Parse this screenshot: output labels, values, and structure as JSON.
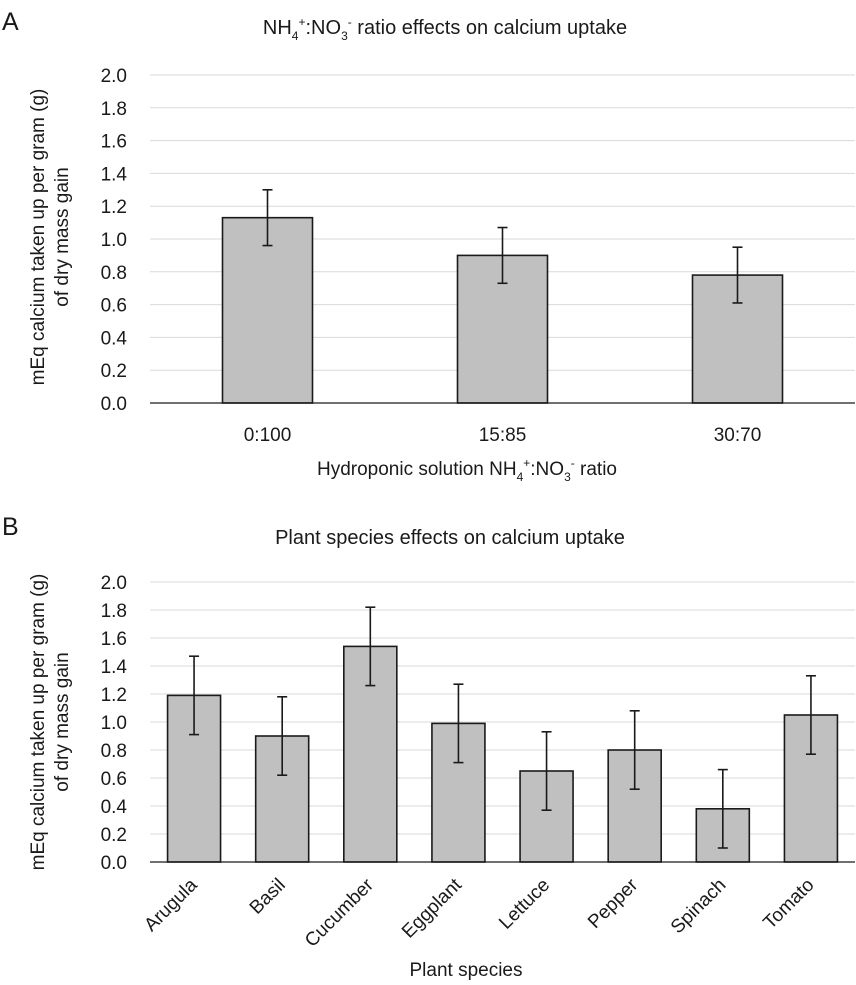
{
  "chart_data": [
    {
      "panel": "A",
      "type": "bar",
      "title": {
        "prefix": "NH",
        "sub1": "4",
        "sup1": "+",
        "mid": ":NO",
        "sub2": "3",
        "sup2": "-",
        "suffix": " ratio effects on calcium uptake"
      },
      "ylabel": {
        "line1": "mEq calcium taken up per gram (g)",
        "line2": "of dry mass gain"
      },
      "xlabel": {
        "prefix": "Hydroponic solution NH",
        "sub1": "4",
        "sup1": "+",
        "mid": ":NO",
        "sub2": "3",
        "sup2": "-",
        "suffix": " ratio"
      },
      "ylim": [
        0,
        2.0
      ],
      "yticks": [
        "0.0",
        "0.2",
        "0.4",
        "0.6",
        "0.8",
        "1.0",
        "1.2",
        "1.4",
        "1.6",
        "1.8",
        "2.0"
      ],
      "grid": true,
      "categories": [
        "0:100",
        "15:85",
        "30:70"
      ],
      "values": [
        1.13,
        0.9,
        0.78
      ],
      "error": [
        0.17,
        0.17,
        0.17
      ]
    },
    {
      "panel": "B",
      "type": "bar",
      "title": "Plant species effects on calcium uptake",
      "ylabel": {
        "line1": "mEq calcium taken up per gram (g)",
        "line2": "of dry mass gain"
      },
      "xlabel": "Plant species",
      "ylim": [
        0,
        2.0
      ],
      "yticks": [
        "0.0",
        "0.2",
        "0.4",
        "0.6",
        "0.8",
        "1.0",
        "1.2",
        "1.4",
        "1.6",
        "1.8",
        "2.0"
      ],
      "grid": true,
      "categories": [
        "Arugula",
        "Basil",
        "Cucumber",
        "Eggplant",
        "Lettuce",
        "Pepper",
        "Spinach",
        "Tomato"
      ],
      "values": [
        1.19,
        0.9,
        1.54,
        0.99,
        0.65,
        0.8,
        0.38,
        1.05
      ],
      "error": [
        0.28,
        0.28,
        0.28,
        0.28,
        0.28,
        0.28,
        0.28,
        0.28
      ]
    }
  ]
}
